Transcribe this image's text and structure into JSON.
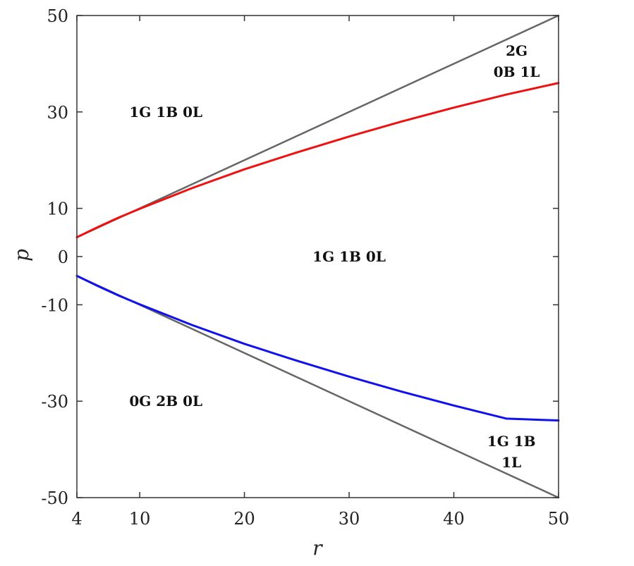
{
  "chart_data": {
    "type": "line",
    "title": "",
    "xlabel": "r",
    "ylabel": "p",
    "xlim": [
      4,
      50
    ],
    "ylim": [
      -50,
      50
    ],
    "xticks": [
      4,
      10,
      20,
      30,
      40,
      50
    ],
    "yticks": [
      -50,
      -30,
      -10,
      0,
      10,
      30,
      50
    ],
    "grid": false,
    "series": [
      {
        "color": "#666666",
        "x": [
          4,
          50
        ],
        "y": [
          4,
          50
        ]
      },
      {
        "color": "#666666",
        "x": [
          4,
          50
        ],
        "y": [
          -4,
          -50
        ]
      },
      {
        "color": "#ee1111",
        "x": [
          4,
          6,
          8,
          10,
          15,
          20,
          25,
          30,
          35,
          40,
          45,
          50
        ],
        "y": [
          4,
          6.1,
          8.1,
          9.9,
          14.2,
          18.1,
          21.6,
          24.9,
          28.0,
          30.9,
          33.6,
          36.0
        ]
      },
      {
        "color": "#1111ee",
        "x": [
          4,
          6,
          8,
          10,
          15,
          20,
          25,
          30,
          35,
          40,
          45,
          50
        ],
        "y": [
          -4,
          -6.1,
          -8.1,
          -9.9,
          -14.2,
          -18.1,
          -21.6,
          -24.9,
          -28.0,
          -30.9,
          -33.6,
          -34.0
        ]
      }
    ],
    "annotations": [
      {
        "lines": [
          "1G 1B 0L"
        ],
        "x": 12.5,
        "y": 30
      },
      {
        "lines": [
          "2G",
          "0B 1L"
        ],
        "x": 46,
        "y": 40.5
      },
      {
        "lines": [
          "1G 1B 0L"
        ],
        "x": 30,
        "y": 0
      },
      {
        "lines": [
          "0G 2B 0L"
        ],
        "x": 12.5,
        "y": -30
      },
      {
        "lines": [
          "1G 1B",
          "1L"
        ],
        "x": 45.5,
        "y": -40.5
      }
    ]
  }
}
